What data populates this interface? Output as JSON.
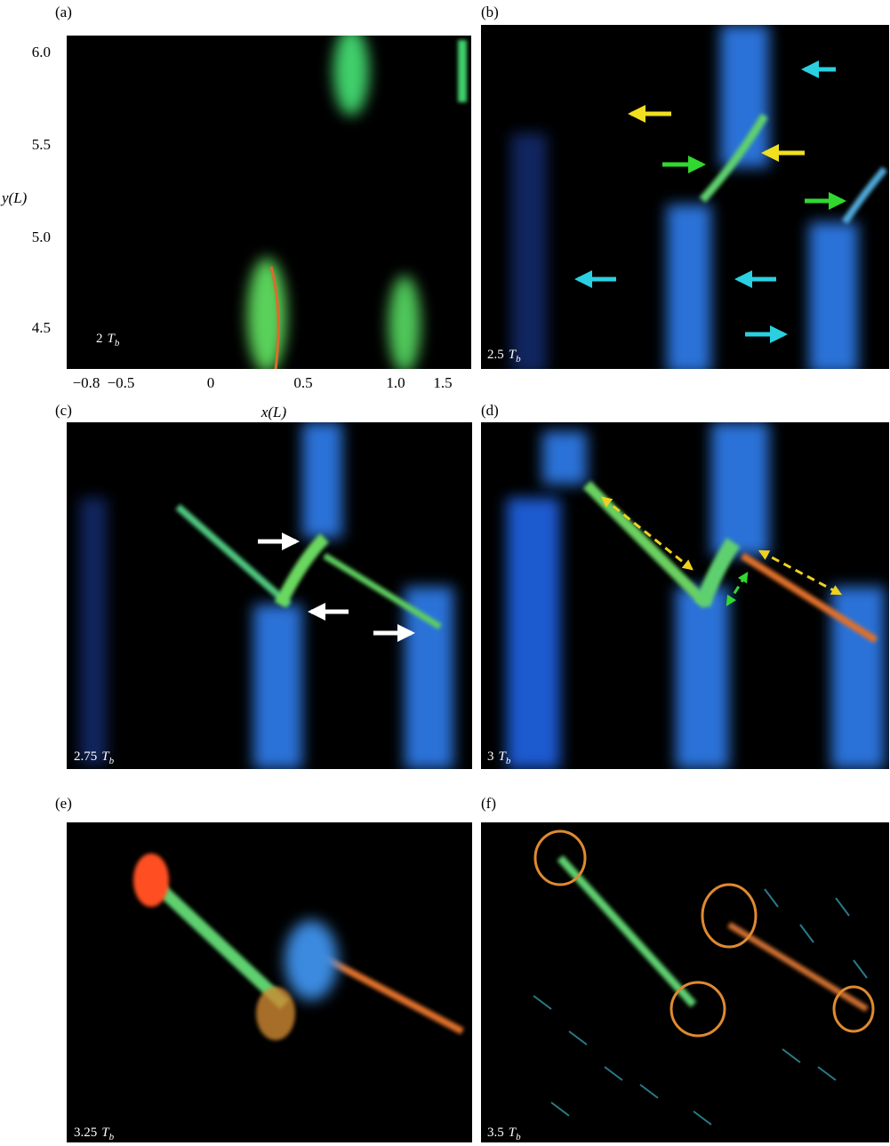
{
  "figure": {
    "axes": {
      "y_label": "y(L)",
      "x_label": "x(L)",
      "y_ticks": [
        "6.0",
        "5.5",
        "5.0",
        "4.5"
      ],
      "x_ticks": [
        "−0.8",
        "−0.5",
        "0",
        "0.5",
        "1.0",
        "1.5"
      ]
    },
    "panels": [
      {
        "label": "(a)",
        "time": "2",
        "unit": "T",
        "unit_sub": "b"
      },
      {
        "label": "(b)",
        "time": "2.5",
        "unit": "T",
        "unit_sub": "b"
      },
      {
        "label": "(c)",
        "time": "2.75",
        "unit": "T",
        "unit_sub": "b"
      },
      {
        "label": "(d)",
        "time": "3",
        "unit": "T",
        "unit_sub": "b"
      },
      {
        "label": "(e)",
        "time": "3.25",
        "unit": "T",
        "unit_sub": "b"
      },
      {
        "label": "(f)",
        "time": "3.5",
        "unit": "T",
        "unit_sub": "b"
      }
    ]
  }
}
